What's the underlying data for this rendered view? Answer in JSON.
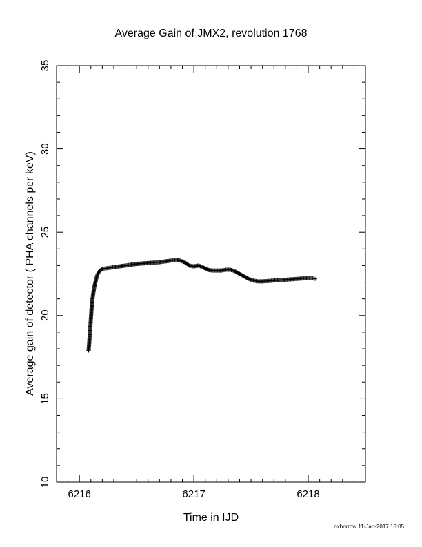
{
  "chart_data": {
    "type": "scatter",
    "title": "Average Gain of JMX2, revolution 1768",
    "xlabel": "Time in IJD",
    "ylabel": "Average gain of detector ( PHA channels per keV)",
    "xlim": [
      6215.8,
      6218.5
    ],
    "ylim": [
      10,
      35
    ],
    "x_ticks": [
      6216,
      6217,
      6218
    ],
    "y_ticks": [
      10,
      15,
      20,
      25,
      30,
      35
    ],
    "marker": "plus",
    "grid": false,
    "series": [
      {
        "values_xy": [
          [
            6216.08,
            17.9
          ],
          [
            6216.085,
            18.3
          ],
          [
            6216.09,
            18.8
          ],
          [
            6216.095,
            19.3
          ],
          [
            6216.1,
            19.8
          ],
          [
            6216.105,
            20.3
          ],
          [
            6216.11,
            20.8
          ],
          [
            6216.12,
            21.3
          ],
          [
            6216.13,
            21.7
          ],
          [
            6216.14,
            22.0
          ],
          [
            6216.15,
            22.3
          ],
          [
            6216.16,
            22.5
          ],
          [
            6216.18,
            22.7
          ],
          [
            6216.2,
            22.8
          ],
          [
            6216.25,
            22.85
          ],
          [
            6216.3,
            22.9
          ],
          [
            6216.4,
            23.0
          ],
          [
            6216.5,
            23.1
          ],
          [
            6216.6,
            23.15
          ],
          [
            6216.7,
            23.2
          ],
          [
            6216.8,
            23.3
          ],
          [
            6216.85,
            23.35
          ],
          [
            6216.88,
            23.3
          ],
          [
            6216.92,
            23.2
          ],
          [
            6216.96,
            23.0
          ],
          [
            6217.0,
            22.95
          ],
          [
            6217.04,
            23.0
          ],
          [
            6217.08,
            22.9
          ],
          [
            6217.12,
            22.75
          ],
          [
            6217.16,
            22.7
          ],
          [
            6217.2,
            22.7
          ],
          [
            6217.24,
            22.7
          ],
          [
            6217.28,
            22.75
          ],
          [
            6217.32,
            22.75
          ],
          [
            6217.36,
            22.65
          ],
          [
            6217.4,
            22.5
          ],
          [
            6217.44,
            22.35
          ],
          [
            6217.48,
            22.2
          ],
          [
            6217.52,
            22.1
          ],
          [
            6217.56,
            22.05
          ],
          [
            6217.6,
            22.05
          ],
          [
            6217.7,
            22.1
          ],
          [
            6217.8,
            22.15
          ],
          [
            6217.9,
            22.2
          ],
          [
            6218.0,
            22.25
          ],
          [
            6218.04,
            22.25
          ],
          [
            6218.06,
            22.2
          ]
        ]
      }
    ]
  },
  "footer": {
    "credit": "oxborrow 11-Jan-2017 16:05"
  }
}
